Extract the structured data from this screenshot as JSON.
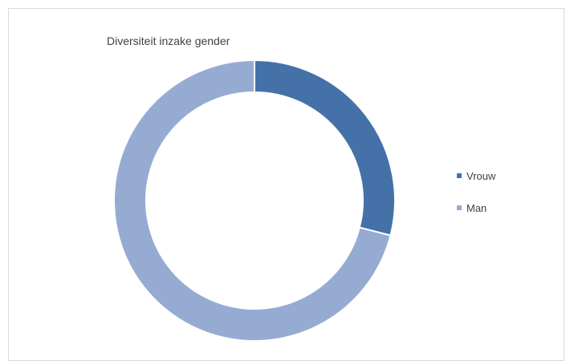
{
  "chart_data": {
    "type": "pie",
    "style": "doughnut",
    "title": "Diversiteit inzake gender",
    "categories": [
      "Vrouw",
      "Man"
    ],
    "values": [
      29,
      71
    ],
    "colors": [
      "#4472a8",
      "#96abd2"
    ],
    "legend_position": "right"
  }
}
